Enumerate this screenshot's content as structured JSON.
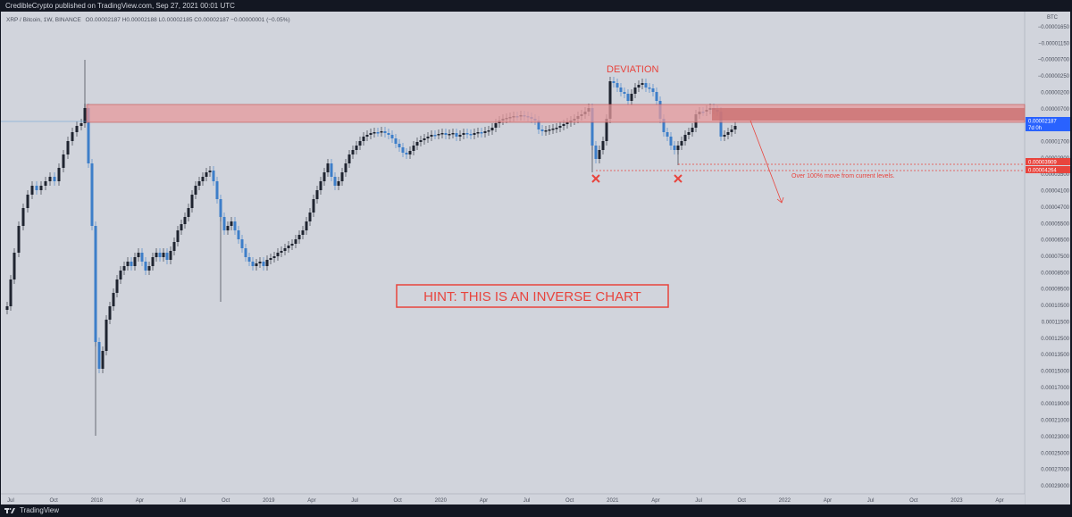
{
  "header": {
    "publish_line": "CredibleCrypto published on TradingView.com, Sep 27, 2021 00:01 UTC"
  },
  "legend": {
    "symbol_line": "XRP / Bitcoin, 1W, BINANCE",
    "ohlc": "O0.00002187  H0.00002188  L0.00002185  C0.00002187  −0.00000001 (−0.05%)"
  },
  "footer": {
    "brand": "TradingView"
  },
  "colors": {
    "background": "#d1d4dc",
    "up_candle": "#1f2430",
    "down_candle": "#3d7ec9",
    "zone_fill": "#e59a9c",
    "annotation": "#e8443d"
  },
  "chart_data": {
    "type": "candlestick",
    "subtype": "inverse (price axis inverted)",
    "symbol": "XRP / Bitcoin, 1W, BINANCE",
    "yaxis": {
      "unit": "BTC",
      "inverted": true,
      "ticks": [
        "−0.00001650",
        "−0.00001150",
        "−0.00000700",
        "−0.00000250",
        "0.00000200",
        "0.00000700",
        "0.00001200",
        "0.00001700",
        "0.00002900",
        "0.00003500",
        "0.00004100",
        "0.00004700",
        "0.00005500",
        "0.00006500",
        "0.00007500",
        "0.00008500",
        "0.00009500",
        "0.00010500",
        "0.00011500",
        "0.00012500",
        "0.00013500",
        "0.00015000",
        "0.00017000",
        "0.00019000",
        "0.00021000",
        "0.00023000",
        "0.00025000",
        "0.00027000",
        "0.00029000"
      ],
      "price_labels": [
        {
          "value": "0.00002187",
          "sub": "7d 0h",
          "color": "#2962ff"
        },
        {
          "value": "0.00003909",
          "sub": "",
          "color": "#e8443d"
        },
        {
          "value": "0.00004264",
          "sub": "",
          "color": "#e8443d"
        }
      ]
    },
    "xaxis": {
      "ticks": [
        "Jul",
        "Oct",
        "2018",
        "Apr",
        "Jul",
        "Oct",
        "2019",
        "Apr",
        "Jul",
        "Oct",
        "2020",
        "Apr",
        "Jul",
        "Oct",
        "2021",
        "Apr",
        "Jul",
        "Oct",
        "2022",
        "Apr",
        "Jul",
        "Oct",
        "2023",
        "Apr"
      ]
    },
    "annotations": {
      "deviation": "DEVIATION",
      "hint": "HINT: THIS IS AN INVERSE CHART",
      "target": "Over 100% move from current levels."
    }
  }
}
